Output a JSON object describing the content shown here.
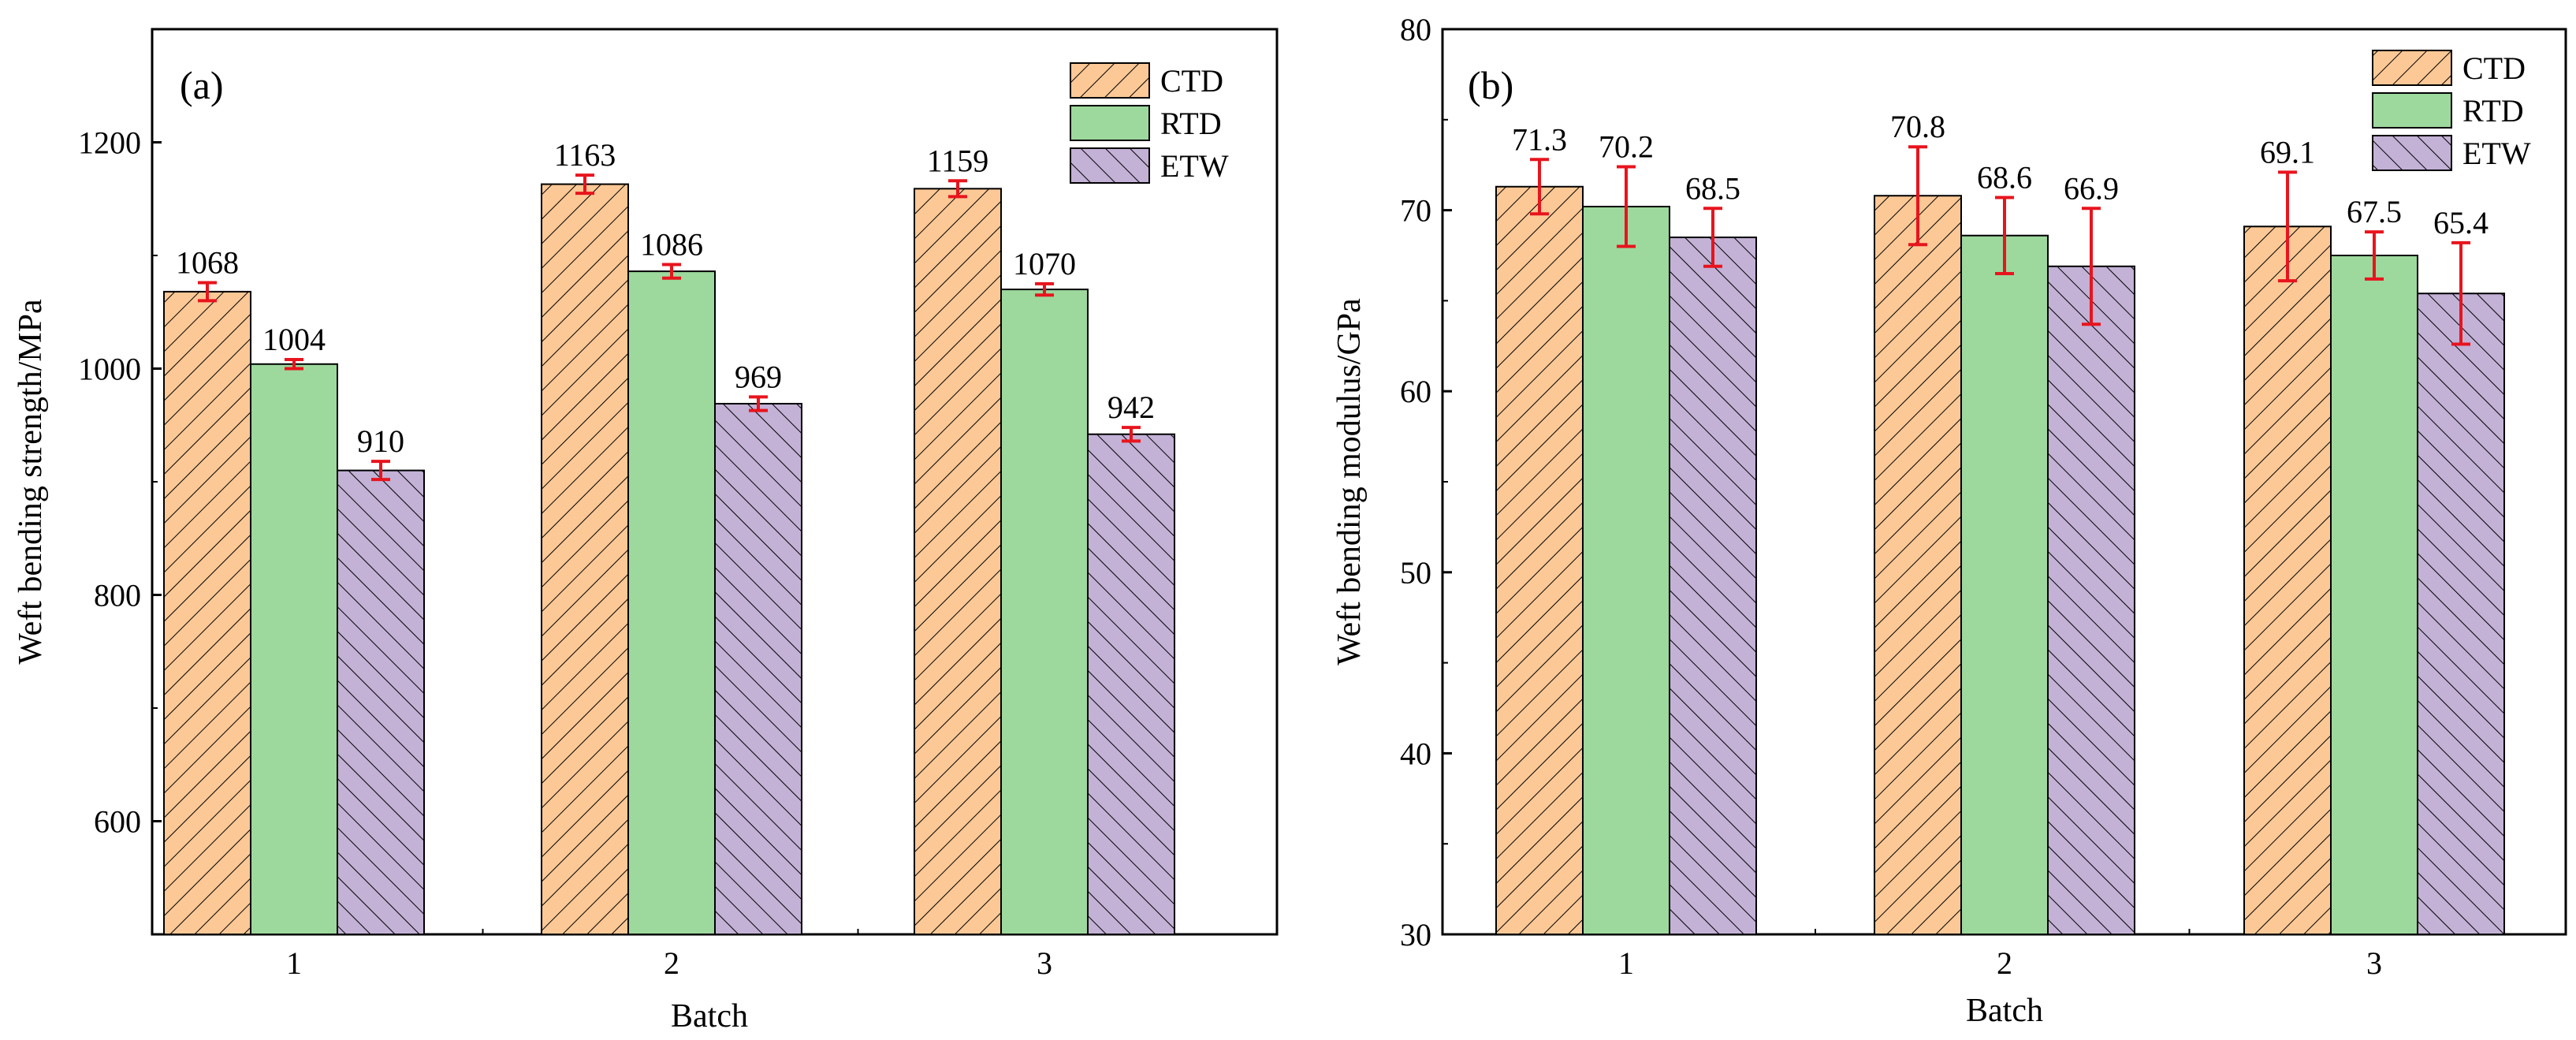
{
  "colors": {
    "CTD": "#fbc896",
    "RTD": "#9dd89d",
    "ETW": "#c3b1d6",
    "error_bar": "#e8141d",
    "axis": "#000000"
  },
  "chart_data": [
    {
      "type": "bar",
      "panel_label": "(a)",
      "xlabel": "Batch",
      "ylabel": "Weft bending strength/MPa",
      "categories": [
        "1",
        "2",
        "3"
      ],
      "ylim": [
        500,
        1300
      ],
      "yticks": [
        600,
        800,
        1000,
        1200
      ],
      "ytick_labels": [
        "600",
        "800",
        "1000",
        "1200"
      ],
      "legend_position": "top-right",
      "series": [
        {
          "name": "CTD",
          "values": [
            1068,
            1163,
            1159
          ],
          "errors": [
            8,
            8,
            7
          ],
          "labels": [
            "1068",
            "1163",
            "1159"
          ]
        },
        {
          "name": "RTD",
          "values": [
            1004,
            1086,
            1070
          ],
          "errors": [
            4,
            6,
            5
          ],
          "labels": [
            "1004",
            "1086",
            "1070"
          ]
        },
        {
          "name": "ETW",
          "values": [
            910,
            969,
            942
          ],
          "errors": [
            8,
            6,
            6
          ],
          "labels": [
            "910",
            "969",
            "942"
          ]
        }
      ]
    },
    {
      "type": "bar",
      "panel_label": "(b)",
      "xlabel": "Batch",
      "ylabel": "Weft bending modulus/GPa",
      "categories": [
        "1",
        "2",
        "3"
      ],
      "ylim": [
        30,
        80
      ],
      "yticks": [
        30,
        40,
        50,
        60,
        70,
        80
      ],
      "ytick_labels": [
        "30",
        "40",
        "50",
        "60",
        "70",
        "80"
      ],
      "legend_position": "top-right",
      "series": [
        {
          "name": "CTD",
          "values": [
            71.3,
            70.8,
            69.1
          ],
          "errors": [
            1.5,
            2.7,
            3.0
          ],
          "labels": [
            "71.3",
            "70.8",
            "69.1"
          ]
        },
        {
          "name": "RTD",
          "values": [
            70.2,
            68.6,
            67.5
          ],
          "errors": [
            2.2,
            2.1,
            1.3
          ],
          "labels": [
            "70.2",
            "68.6",
            "67.5"
          ]
        },
        {
          "name": "ETW",
          "values": [
            68.5,
            66.9,
            65.4
          ],
          "errors": [
            1.6,
            3.2,
            2.8
          ],
          "labels": [
            "68.5",
            "66.9",
            "65.4"
          ]
        }
      ]
    }
  ]
}
